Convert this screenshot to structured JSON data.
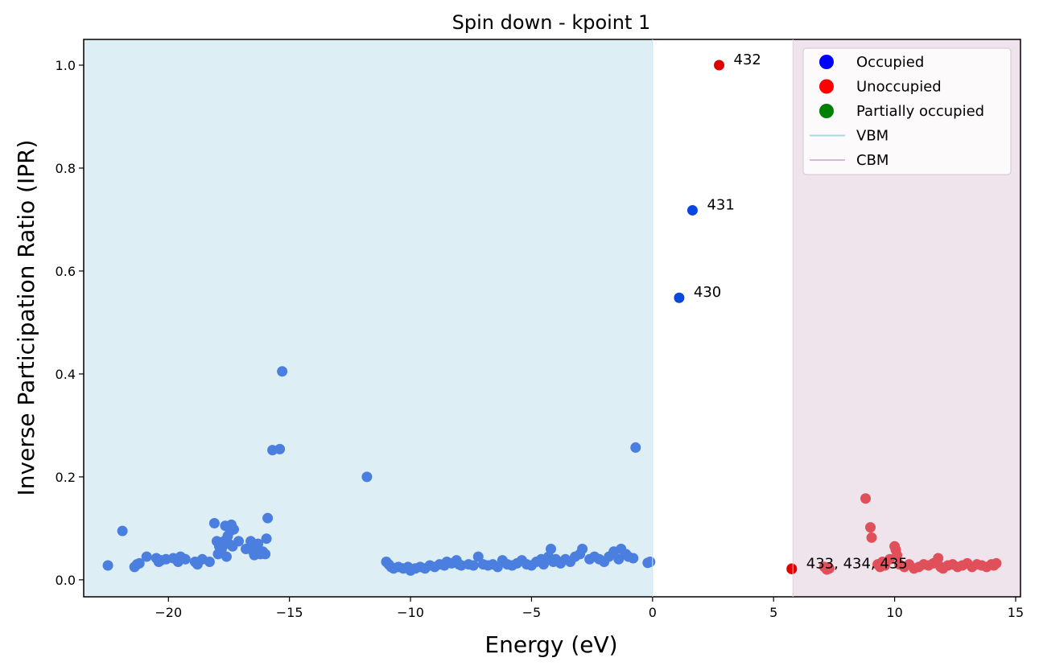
{
  "chart_data": {
    "type": "scatter",
    "title": "Spin down - kpoint 1",
    "xlabel": "Energy (eV)",
    "ylabel": "Inverse Participation Ratio (IPR)",
    "xlim": [
      -23.5,
      15.2
    ],
    "ylim": [
      -0.033,
      1.05
    ],
    "xticks": [
      -20,
      -15,
      -10,
      -5,
      0,
      5,
      10,
      15
    ],
    "xtick_labels": [
      "−20",
      "−15",
      "−10",
      "−5",
      "0",
      "5",
      "10",
      "15"
    ],
    "yticks": [
      0.0,
      0.2,
      0.4,
      0.6,
      0.8,
      1.0
    ],
    "ytick_labels": [
      "0.0",
      "0.2",
      "0.4",
      "0.6",
      "0.8",
      "1.0"
    ],
    "shaded_regions": [
      {
        "name": "VBM",
        "from": -23.5,
        "to": 0.0,
        "color": "#ddeef5"
      },
      {
        "name": "CBM",
        "from": 5.8,
        "to": 15.2,
        "color": "#efe3ec"
      }
    ],
    "series": [
      {
        "name": "occupied-bands",
        "color": "#4a7fe0",
        "points": [
          [
            -22.5,
            0.028
          ],
          [
            -21.9,
            0.095
          ],
          [
            -21.4,
            0.025
          ],
          [
            -21.3,
            0.03
          ],
          [
            -21.2,
            0.032
          ],
          [
            -20.9,
            0.045
          ],
          [
            -20.5,
            0.042
          ],
          [
            -20.4,
            0.035
          ],
          [
            -20.3,
            0.038
          ],
          [
            -20.1,
            0.04
          ],
          [
            -19.8,
            0.042
          ],
          [
            -19.6,
            0.035
          ],
          [
            -19.5,
            0.045
          ],
          [
            -19.3,
            0.04
          ],
          [
            -18.9,
            0.035
          ],
          [
            -18.8,
            0.03
          ],
          [
            -18.6,
            0.04
          ],
          [
            -18.3,
            0.035
          ],
          [
            -18.1,
            0.11
          ],
          [
            -18.0,
            0.075
          ],
          [
            -17.95,
            0.05
          ],
          [
            -17.9,
            0.065
          ],
          [
            -17.8,
            0.06
          ],
          [
            -17.7,
            0.075
          ],
          [
            -17.65,
            0.105
          ],
          [
            -17.6,
            0.045
          ],
          [
            -17.55,
            0.085
          ],
          [
            -17.5,
            0.07
          ],
          [
            -17.45,
            0.095
          ],
          [
            -17.4,
            0.107
          ],
          [
            -17.35,
            0.065
          ],
          [
            -17.3,
            0.098
          ],
          [
            -17.1,
            0.075
          ],
          [
            -16.8,
            0.06
          ],
          [
            -16.6,
            0.075
          ],
          [
            -16.5,
            0.055
          ],
          [
            -16.45,
            0.048
          ],
          [
            -16.4,
            0.065
          ],
          [
            -16.3,
            0.07
          ],
          [
            -16.2,
            0.05
          ],
          [
            -16.1,
            0.055
          ],
          [
            -16.0,
            0.05
          ],
          [
            -15.95,
            0.08
          ],
          [
            -15.9,
            0.12
          ],
          [
            -15.7,
            0.252
          ],
          [
            -15.4,
            0.254
          ],
          [
            -15.3,
            0.405
          ],
          [
            -11.8,
            0.2
          ],
          [
            -11.0,
            0.035
          ],
          [
            -10.9,
            0.03
          ],
          [
            -10.8,
            0.025
          ],
          [
            -10.7,
            0.022
          ],
          [
            -10.5,
            0.025
          ],
          [
            -10.3,
            0.022
          ],
          [
            -10.1,
            0.025
          ],
          [
            -10.0,
            0.018
          ],
          [
            -9.8,
            0.022
          ],
          [
            -9.6,
            0.025
          ],
          [
            -9.4,
            0.022
          ],
          [
            -9.2,
            0.028
          ],
          [
            -9.0,
            0.025
          ],
          [
            -8.8,
            0.03
          ],
          [
            -8.6,
            0.028
          ],
          [
            -8.5,
            0.035
          ],
          [
            -8.3,
            0.032
          ],
          [
            -8.1,
            0.038
          ],
          [
            -8.0,
            0.03
          ],
          [
            -7.9,
            0.028
          ],
          [
            -7.6,
            0.03
          ],
          [
            -7.4,
            0.028
          ],
          [
            -7.2,
            0.045
          ],
          [
            -7.0,
            0.03
          ],
          [
            -6.8,
            0.028
          ],
          [
            -6.6,
            0.03
          ],
          [
            -6.4,
            0.025
          ],
          [
            -6.2,
            0.038
          ],
          [
            -6.0,
            0.03
          ],
          [
            -5.8,
            0.028
          ],
          [
            -5.6,
            0.032
          ],
          [
            -5.4,
            0.038
          ],
          [
            -5.2,
            0.03
          ],
          [
            -5.0,
            0.028
          ],
          [
            -4.8,
            0.035
          ],
          [
            -4.6,
            0.04
          ],
          [
            -4.5,
            0.03
          ],
          [
            -4.3,
            0.045
          ],
          [
            -4.2,
            0.06
          ],
          [
            -4.1,
            0.035
          ],
          [
            -4.0,
            0.04
          ],
          [
            -3.8,
            0.032
          ],
          [
            -3.6,
            0.04
          ],
          [
            -3.4,
            0.035
          ],
          [
            -3.2,
            0.045
          ],
          [
            -3.0,
            0.05
          ],
          [
            -2.9,
            0.06
          ],
          [
            -2.6,
            0.04
          ],
          [
            -2.4,
            0.045
          ],
          [
            -2.2,
            0.04
          ],
          [
            -2.0,
            0.035
          ],
          [
            -1.8,
            0.045
          ],
          [
            -1.6,
            0.055
          ],
          [
            -1.4,
            0.04
          ],
          [
            -1.3,
            0.06
          ],
          [
            -1.1,
            0.05
          ],
          [
            -1.0,
            0.045
          ],
          [
            -0.8,
            0.042
          ],
          [
            -0.7,
            0.257
          ],
          [
            -0.2,
            0.033
          ],
          [
            -0.1,
            0.035
          ]
        ]
      },
      {
        "name": "unoccupied-bands",
        "color": "#e0505a",
        "points": [
          [
            5.75,
            0.022
          ],
          [
            7.1,
            0.025
          ],
          [
            7.2,
            0.02
          ],
          [
            7.3,
            0.022
          ],
          [
            8.8,
            0.158
          ],
          [
            9.0,
            0.102
          ],
          [
            9.05,
            0.082
          ],
          [
            9.3,
            0.03
          ],
          [
            9.4,
            0.025
          ],
          [
            9.5,
            0.035
          ],
          [
            9.6,
            0.028
          ],
          [
            9.8,
            0.04
          ],
          [
            10.0,
            0.065
          ],
          [
            10.05,
            0.058
          ],
          [
            10.1,
            0.048
          ],
          [
            10.2,
            0.03
          ],
          [
            10.4,
            0.025
          ],
          [
            10.6,
            0.03
          ],
          [
            10.8,
            0.022
          ],
          [
            11.0,
            0.025
          ],
          [
            11.2,
            0.03
          ],
          [
            11.4,
            0.028
          ],
          [
            11.6,
            0.032
          ],
          [
            11.8,
            0.042
          ],
          [
            11.9,
            0.025
          ],
          [
            12.0,
            0.022
          ],
          [
            12.2,
            0.028
          ],
          [
            12.4,
            0.03
          ],
          [
            12.6,
            0.025
          ],
          [
            12.8,
            0.028
          ],
          [
            13.0,
            0.032
          ],
          [
            13.2,
            0.025
          ],
          [
            13.4,
            0.03
          ],
          [
            13.6,
            0.028
          ],
          [
            13.8,
            0.025
          ],
          [
            14.0,
            0.03
          ],
          [
            14.1,
            0.028
          ],
          [
            14.2,
            0.032
          ]
        ]
      },
      {
        "name": "highlighted-occupied",
        "color": "#0a46e0",
        "points": [
          [
            1.1,
            0.548
          ],
          [
            1.65,
            0.718
          ]
        ]
      },
      {
        "name": "highlighted-unoccupied",
        "color": "#e00000",
        "points": [
          [
            2.75,
            1.0
          ],
          [
            5.75,
            0.021
          ]
        ]
      }
    ],
    "annotations": [
      {
        "text": "432",
        "x": 2.75,
        "y": 1.0
      },
      {
        "text": "431",
        "x": 1.65,
        "y": 0.718
      },
      {
        "text": "430",
        "x": 1.1,
        "y": 0.548
      },
      {
        "text": "433, 434, 435",
        "x": 5.75,
        "y": 0.021
      }
    ],
    "legend": {
      "placement": "top-right",
      "entries": [
        {
          "label": "Occupied",
          "kind": "marker",
          "color": "#0000ff"
        },
        {
          "label": "Unoccupied",
          "kind": "marker",
          "color": "#ff0000"
        },
        {
          "label": "Partially occupied",
          "kind": "marker",
          "color": "#008000"
        },
        {
          "label": "VBM",
          "kind": "line",
          "color": "#a8d8e0"
        },
        {
          "label": "CBM",
          "kind": "line",
          "color": "#d8b8d8"
        }
      ]
    }
  }
}
